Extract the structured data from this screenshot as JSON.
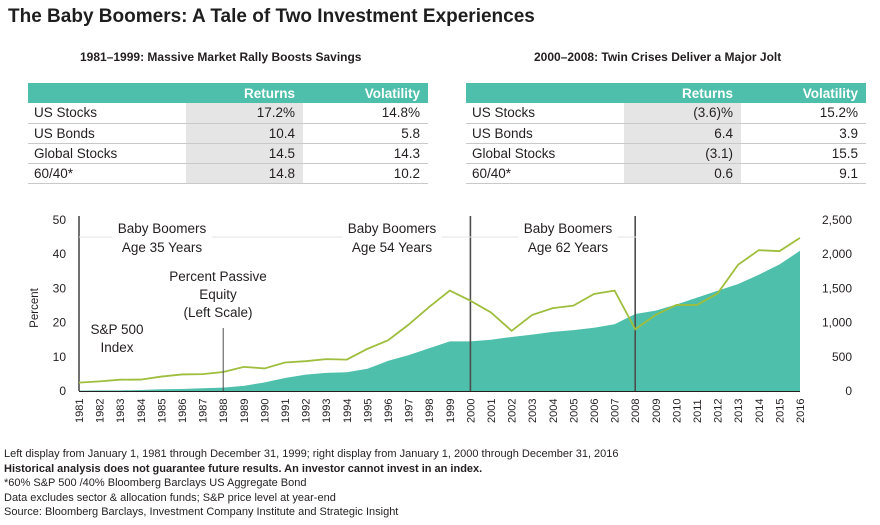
{
  "title": "The Baby Boomers: A Tale of Two Investment Experiences",
  "tables": [
    {
      "title": "1981–1999: Massive Market Rally Boosts Savings",
      "headers": [
        "",
        "Returns",
        "Volatility"
      ],
      "rows": [
        {
          "label": "US Stocks",
          "returns": "17.2%",
          "volatility": "14.8%"
        },
        {
          "label": "US Bonds",
          "returns": "10.4",
          "volatility": "5.8"
        },
        {
          "label": "Global Stocks",
          "returns": "14.5",
          "volatility": "14.3"
        },
        {
          "label": "60/40*",
          "returns": "14.8",
          "volatility": "10.2"
        }
      ]
    },
    {
      "title": "2000–2008: Twin Crises Deliver a Major Jolt",
      "headers": [
        "",
        "Returns",
        "Volatility"
      ],
      "rows": [
        {
          "label": "US Stocks",
          "returns": "(3.6)%",
          "volatility": "15.2%"
        },
        {
          "label": "US Bonds",
          "returns": "6.4",
          "volatility": "3.9"
        },
        {
          "label": "Global Stocks",
          "returns": "(3.1)",
          "volatility": "15.5"
        },
        {
          "label": "60/40*",
          "returns": "0.6",
          "volatility": "9.1"
        }
      ]
    }
  ],
  "chart_data": {
    "type": "area",
    "x": [
      1981,
      1982,
      1983,
      1984,
      1985,
      1986,
      1987,
      1988,
      1989,
      1990,
      1991,
      1992,
      1993,
      1994,
      1995,
      1996,
      1997,
      1998,
      1999,
      2000,
      2001,
      2002,
      2003,
      2004,
      2005,
      2006,
      2007,
      2008,
      2009,
      2010,
      2011,
      2012,
      2013,
      2014,
      2015,
      2016
    ],
    "x_tick_labels": [
      "1981",
      "1982",
      "1983",
      "1984",
      "1985",
      "1986",
      "1987",
      "1988",
      "1989",
      "1990",
      "1991",
      "1992",
      "1993",
      "1994",
      "1995",
      "1996",
      "1997",
      "1998",
      "1999",
      "2000",
      "2001",
      "2002",
      "2003",
      "2004",
      "2005",
      "2006",
      "2007",
      "2008",
      "2009",
      "2010",
      "2011",
      "2012",
      "2013",
      "2014",
      "2015",
      "2016"
    ],
    "series": [
      {
        "name": "Percent Passive Equity (Left Scale)",
        "type": "area",
        "axis": "left",
        "color": "#4ebfaa",
        "values": [
          0.1,
          0.2,
          0.2,
          0.3,
          0.5,
          0.6,
          0.8,
          1.0,
          1.5,
          2.5,
          3.8,
          4.8,
          5.3,
          5.5,
          6.5,
          8.8,
          10.5,
          12.5,
          14.5,
          14.5,
          15.0,
          15.8,
          16.5,
          17.3,
          17.8,
          18.5,
          19.5,
          22.5,
          23.5,
          25.3,
          27.3,
          29.3,
          31.3,
          34.0,
          37.0,
          41.0
        ]
      },
      {
        "name": "S&P 500 Index",
        "type": "line",
        "axis": "right",
        "color": "#9fbe3d",
        "values": [
          122,
          141,
          165,
          167,
          211,
          242,
          247,
          278,
          353,
          330,
          417,
          436,
          466,
          459,
          616,
          741,
          970,
          1229,
          1469,
          1320,
          1148,
          880,
          1112,
          1212,
          1248,
          1418,
          1468,
          903,
          1115,
          1258,
          1258,
          1426,
          1848,
          2059,
          2044,
          2239
        ]
      }
    ],
    "y_left": {
      "label": "Percent",
      "min": 0,
      "max": 50,
      "ticks": [
        "0",
        "10",
        "20",
        "30",
        "40",
        "50"
      ]
    },
    "y_right": {
      "min": 0,
      "max": 2500,
      "ticks": [
        "0",
        "500",
        "1,000",
        "1,500",
        "2,000",
        "2,500"
      ]
    },
    "vertical_lines": [
      1981,
      2000,
      2008
    ],
    "annotations": {
      "boomer_35": [
        "Baby Boomers",
        "Age 35 Years"
      ],
      "boomer_54": [
        "Baby Boomers",
        "Age 54 Years"
      ],
      "boomer_62": [
        "Baby Boomers",
        "Age 62 Years"
      ],
      "passive_label": [
        "Percent Passive",
        "Equity",
        "(Left Scale)"
      ],
      "sp_label": [
        "S&P 500",
        "Index"
      ]
    },
    "grid": false
  },
  "notes": [
    "Left display from January 1, 1981 through December 31, 1999; right display from January 1, 2000 through December 31, 2016",
    "Historical analysis does not guarantee future results. An investor cannot invest in an index.",
    "*60% S&P 500 /40% Bloomberg Barclays US Aggregate Bond",
    "Data excludes sector & allocation funds; S&P price level at year-end",
    "Source: Bloomberg Barclays, Investment Company Institute and Strategic Insight"
  ]
}
